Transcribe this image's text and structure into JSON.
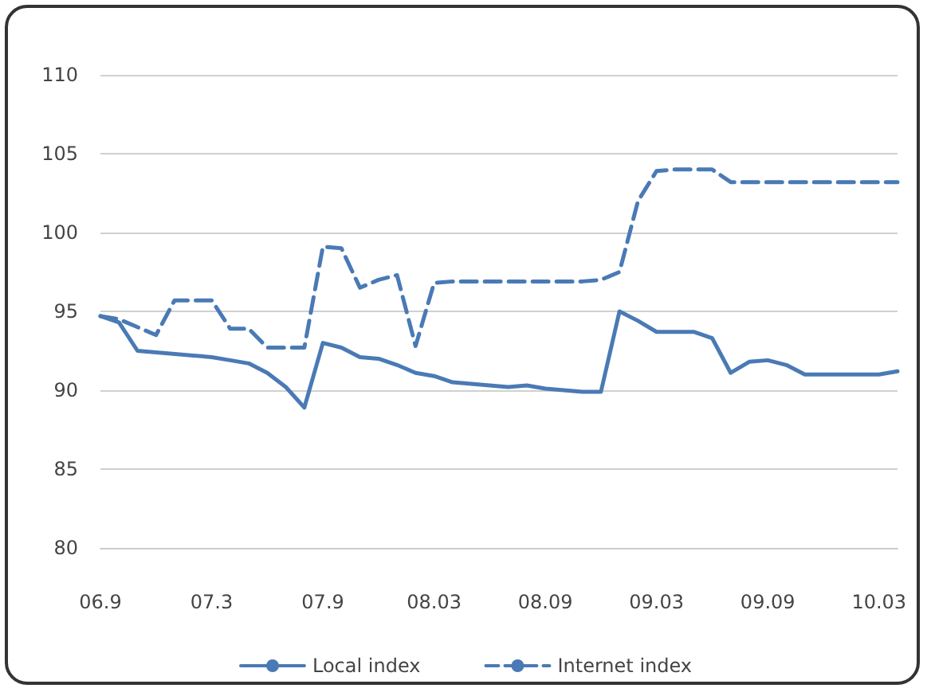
{
  "chart_data": {
    "type": "line",
    "categories": [
      "06.9",
      null,
      null,
      null,
      null,
      null,
      "07.3",
      null,
      null,
      null,
      null,
      null,
      "07.9",
      null,
      null,
      null,
      null,
      null,
      "08.03",
      null,
      null,
      null,
      null,
      null,
      "08.09",
      null,
      null,
      null,
      null,
      null,
      "09.03",
      null,
      null,
      null,
      null,
      null,
      "09.09",
      null,
      null,
      null,
      null,
      null,
      "10.03",
      null
    ],
    "series": [
      {
        "name": "Local index",
        "color": "#4a7ab5",
        "line_style": "solid",
        "values": [
          94.7,
          94.3,
          92.5,
          92.4,
          92.3,
          92.2,
          92.1,
          91.9,
          91.7,
          91.1,
          90.2,
          88.9,
          93.0,
          92.7,
          92.1,
          92.0,
          91.6,
          91.1,
          90.9,
          90.5,
          90.4,
          90.3,
          90.2,
          90.3,
          90.1,
          90.0,
          89.9,
          89.9,
          95.0,
          94.4,
          93.7,
          93.7,
          93.7,
          93.3,
          91.1,
          91.8,
          91.9,
          91.6,
          91.0,
          91.0,
          91.0,
          91.0,
          91.0,
          91.2
        ]
      },
      {
        "name": "Internet index",
        "color": "#4a7ab5",
        "line_style": "dashed",
        "values": [
          94.7,
          94.5,
          94.0,
          93.5,
          95.7,
          95.7,
          95.7,
          93.9,
          93.9,
          92.7,
          92.7,
          92.7,
          99.1,
          99.0,
          96.5,
          97.0,
          97.3,
          92.8,
          96.8,
          96.9,
          96.9,
          96.9,
          96.9,
          96.9,
          96.9,
          96.9,
          96.9,
          97.0,
          97.5,
          102.0,
          103.9,
          104.0,
          104.0,
          104.0,
          103.2,
          103.2,
          103.2,
          103.2,
          103.2,
          103.2,
          103.2,
          103.2,
          103.2,
          103.2
        ]
      }
    ],
    "ylim": [
      80,
      110
    ],
    "yticks": [
      80,
      85,
      90,
      95,
      100,
      105,
      110
    ],
    "grid": "y",
    "legend": "bottom"
  }
}
